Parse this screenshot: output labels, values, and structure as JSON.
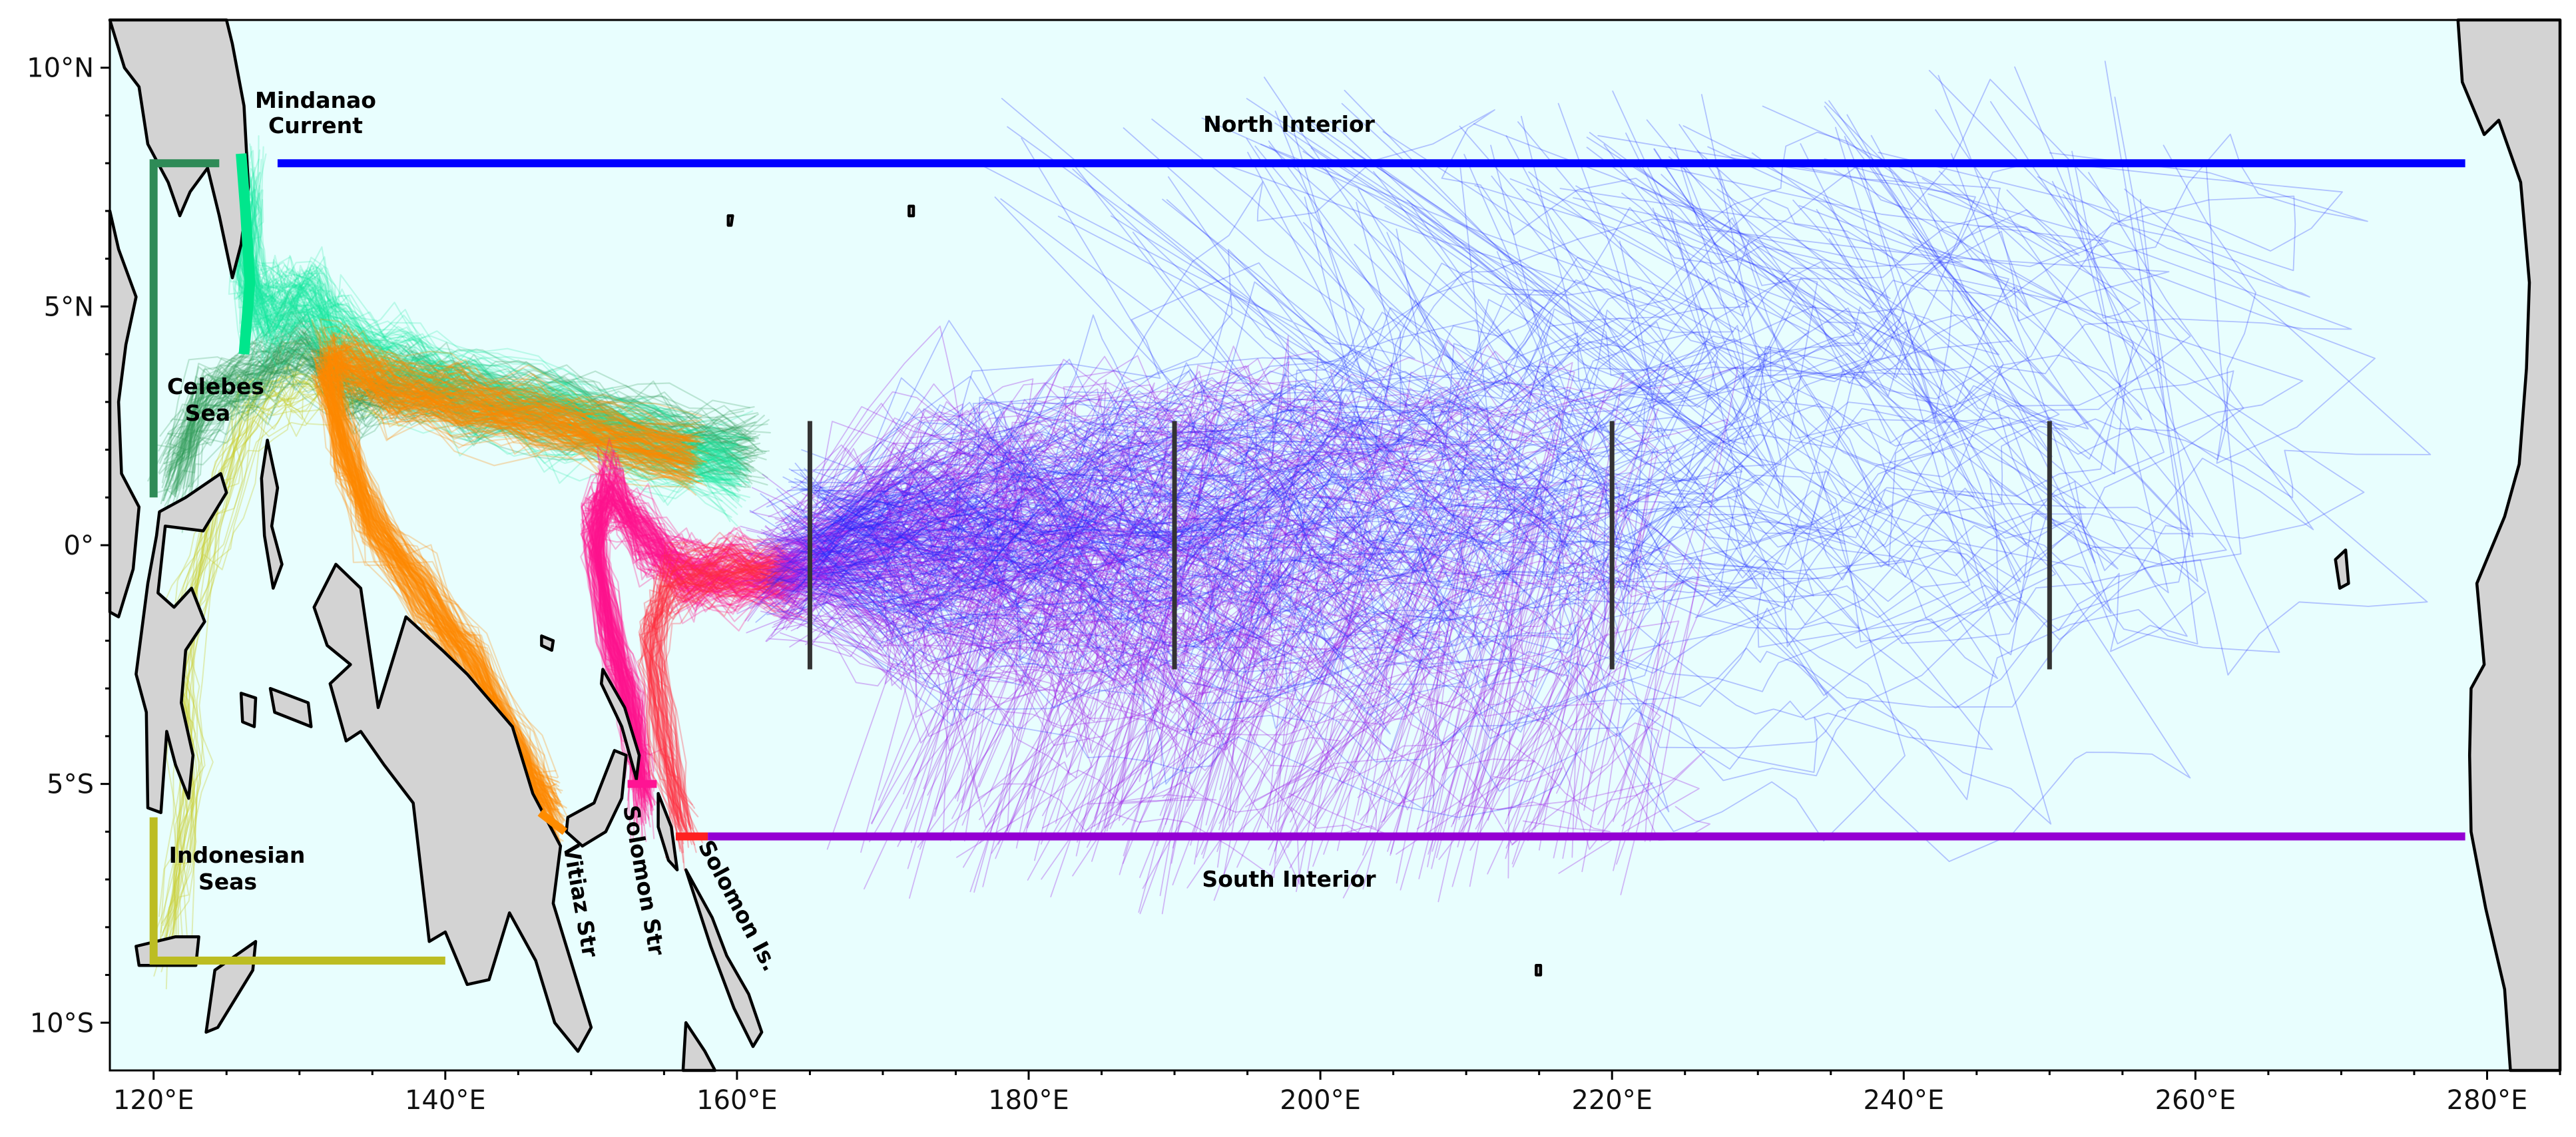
{
  "map": {
    "lon_range": [
      117,
      285
    ],
    "lat_range": [
      -11,
      11
    ],
    "ocean_color": "#e8fefe",
    "land_color": "#d3d3d3",
    "x_ticks": [
      {
        "lon": 120,
        "label": "120°E"
      },
      {
        "lon": 140,
        "label": "140°E"
      },
      {
        "lon": 160,
        "label": "160°E"
      },
      {
        "lon": 180,
        "label": "180°E"
      },
      {
        "lon": 200,
        "label": "200°E"
      },
      {
        "lon": 220,
        "label": "220°E"
      },
      {
        "lon": 240,
        "label": "240°E"
      },
      {
        "lon": 260,
        "label": "260°E"
      },
      {
        "lon": 280,
        "label": "280°E"
      }
    ],
    "y_ticks": [
      {
        "lat": 10,
        "label": "10°N"
      },
      {
        "lat": 5,
        "label": "5°N"
      },
      {
        "lat": 0,
        "label": "0°"
      },
      {
        "lat": -5,
        "label": "5°S"
      },
      {
        "lat": -10,
        "label": "10°S"
      }
    ],
    "labels": {
      "mindanao_line1": "Mindanao",
      "mindanao_line2": "Current",
      "north_interior": "North Interior",
      "celebes_line1": "Celebes",
      "celebes_line2": "Sea",
      "indonesian_line1": "Indonesian",
      "indonesian_line2": "Seas",
      "south_interior": "South Interior",
      "vitiaz": "Vitiaz Str",
      "solomon_str": "Solomon Str",
      "solomon_is": "Solomon Is."
    },
    "sections": [
      {
        "lon": 165,
        "lat_range": [
          -2.6,
          2.6
        ]
      },
      {
        "lon": 190,
        "lat_range": [
          -2.6,
          2.6
        ]
      },
      {
        "lon": 220,
        "lat_range": [
          -2.6,
          2.6
        ]
      },
      {
        "lon": 250,
        "lat_range": [
          -2.6,
          2.6
        ]
      }
    ],
    "boundaries": [
      {
        "name": "north-interior",
        "color": "#0000ff",
        "points": [
          [
            128.5,
            8
          ],
          [
            278.5,
            8
          ]
        ]
      },
      {
        "name": "mindanao-current",
        "color": "#00e68c",
        "points": [
          [
            126,
            8.2
          ],
          [
            126.3,
            7
          ],
          [
            126.6,
            5.5
          ],
          [
            126.2,
            4
          ]
        ]
      },
      {
        "name": "celebes-sea",
        "color": "#2e8b57",
        "points": [
          [
            120,
            1
          ],
          [
            120,
            8
          ],
          [
            124.5,
            8
          ]
        ]
      },
      {
        "name": "indonesian-seas",
        "color": "#bcbd22",
        "points": [
          [
            120,
            -5.7
          ],
          [
            120,
            -8.7
          ],
          [
            140,
            -8.7
          ]
        ]
      },
      {
        "name": "vitiaz-str",
        "color": "#ff8c00",
        "points": [
          [
            146.5,
            -5.6
          ],
          [
            148.2,
            -6
          ]
        ]
      },
      {
        "name": "solomon-str",
        "color": "#ff1493",
        "points": [
          [
            152.5,
            -5
          ],
          [
            154.5,
            -5
          ]
        ]
      },
      {
        "name": "solomon-is",
        "color": "#ff2020",
        "points": [
          [
            155.8,
            -6.1
          ],
          [
            158,
            -6.1
          ]
        ]
      },
      {
        "name": "south-interior",
        "color": "#9400d3",
        "points": [
          [
            158,
            -6.1
          ],
          [
            278.5,
            -6.1
          ]
        ]
      }
    ],
    "trajectory_colors": {
      "north": "#1e28ff",
      "south": "#9a1ee6",
      "mindanao": "#18e6a0",
      "celebes": "#2e9b57",
      "indonesian": "#c8cd30",
      "vitiaz": "#ff8a00",
      "solomon_str": "#ff1490",
      "solomon_is": "#ff3040"
    }
  }
}
